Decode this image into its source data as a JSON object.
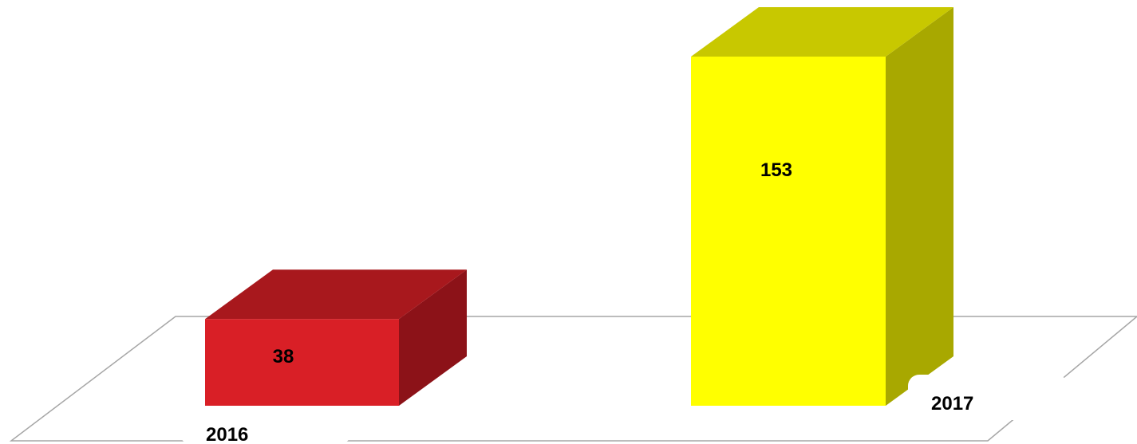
{
  "chart_data": {
    "type": "bar",
    "categories": [
      "2016",
      "2017"
    ],
    "values": [
      38,
      153
    ],
    "data_labels": [
      "38",
      "153"
    ],
    "colors": {
      "2016": {
        "front": "#d91f26",
        "top": "#a8181d",
        "side": "#8c1218"
      },
      "2017": {
        "front": "#ffff00",
        "top": "#c8c800",
        "side": "#a8a800"
      }
    },
    "floor_color": "#a6a6a6",
    "style": "3d"
  }
}
